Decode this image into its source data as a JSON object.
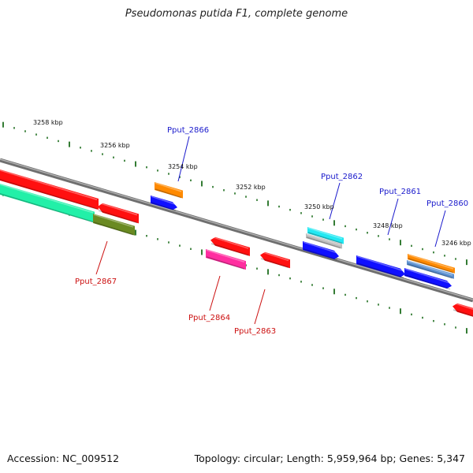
{
  "title": "Pseudomonas putida F1, complete genome",
  "accession": "Accession: NC_009512",
  "topology": "Topology: circular; Length: 5,959,964 bp; Genes: 5,347",
  "colors": {
    "backbone": "#7a7a7a",
    "ticks": "#1e6e1e",
    "red": "#ff1010",
    "blue": "#1010ff",
    "orange": "#ff8a00",
    "cyan": "#22e8f2",
    "mint": "#22f0a8",
    "olive": "#6a8a22",
    "magenta": "#ff2ea0",
    "steel": "#5a8fd0",
    "label_blue": "#1a1acc",
    "label_red": "#cc1010"
  },
  "scale_labels": [
    "3258 kbp",
    "3256 kbp",
    "3254 kbp",
    "3252 kbp",
    "3250 kbp",
    "3248 kbp",
    "3246 kbp"
  ],
  "gene_labels": [
    "Pput_2866",
    "Pput_2862",
    "Pput_2861",
    "Pput_2860",
    "Pput_2867",
    "Pput_2864",
    "Pput_2863"
  ],
  "features": [
    {
      "id": "red-left-outer",
      "color": "red"
    },
    {
      "id": "red-left-2",
      "color": "red"
    },
    {
      "id": "orange-1",
      "color": "orange"
    },
    {
      "id": "blue-1",
      "color": "blue"
    },
    {
      "id": "cyan-1",
      "color": "cyan"
    },
    {
      "id": "gray-1",
      "color": "backbone"
    },
    {
      "id": "blue-2",
      "color": "blue"
    },
    {
      "id": "blue-3",
      "color": "blue"
    },
    {
      "id": "orange-2",
      "color": "orange"
    },
    {
      "id": "steel-1",
      "color": "steel"
    },
    {
      "id": "blue-4",
      "color": "blue"
    },
    {
      "id": "mint-1",
      "color": "mint"
    },
    {
      "id": "olive-1",
      "color": "olive"
    },
    {
      "id": "red-mid-1",
      "color": "red"
    },
    {
      "id": "magenta-1",
      "color": "magenta"
    },
    {
      "id": "red-mid-2",
      "color": "red"
    },
    {
      "id": "red-right",
      "color": "red"
    }
  ]
}
